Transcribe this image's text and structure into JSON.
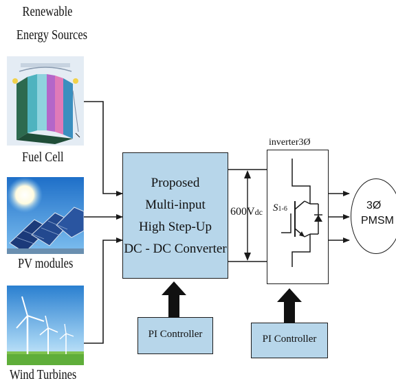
{
  "sources": {
    "title_line1": "Renewable",
    "title_line2": "Energy Sources",
    "fuel_cell": "Fuel Cell",
    "pv_modules": "PV modules",
    "wind_turbines": "Wind Turbines"
  },
  "converter": {
    "line1": "Proposed",
    "line2": "Multi-input",
    "line3": "High Step-Up",
    "line4": "DC - DC Converter"
  },
  "dc_link": {
    "voltage": "600V",
    "unit_sub": "dc"
  },
  "inverter": {
    "label": "inverter3Ø",
    "switch": "S",
    "switch_sub": "1-6"
  },
  "motor": {
    "line1": "3Ø",
    "line2": "PMSM"
  },
  "controllers": {
    "left": "PI Controller",
    "right": "PI Controller"
  },
  "colors": {
    "block_fill": "#b7d6ea",
    "line": "#1a1a1a"
  }
}
